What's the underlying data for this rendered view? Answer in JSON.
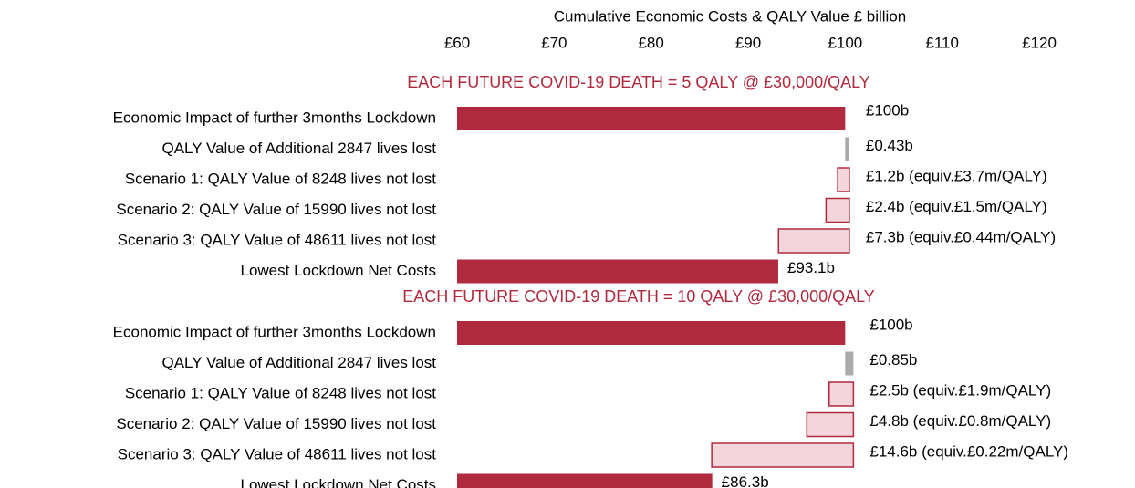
{
  "chart_data": {
    "type": "waterfall",
    "xlabel": "Cumulative Economic Costs & QALY Value £ billion",
    "xlim": [
      60,
      120
    ],
    "xticks": [
      {
        "value": 60,
        "label": "£60"
      },
      {
        "value": 70,
        "label": "£70"
      },
      {
        "value": 80,
        "label": "£80"
      },
      {
        "value": 90,
        "label": "£90"
      },
      {
        "value": 100,
        "label": "£100"
      },
      {
        "value": 110,
        "label": "£110"
      },
      {
        "value": 120,
        "label": "£120"
      }
    ],
    "total_color": "#b02a3e",
    "increase_color": "#aaaaaa",
    "decrease_color": "#f2d6db",
    "sections": [
      {
        "title": "EACH FUTURE COVID-19 DEATH = 5 QALY @ £30,000/QALY",
        "categories": [
          "Economic Impact of further 3months Lockdown",
          "QALY Value of Additional 2847 lives lost",
          "Scenario 1: QALY Value of 8248 lives not lost",
          "Scenario 2: QALY Value of 15990 lives not lost",
          "Scenario 3: QALY Value of 48611 lives not lost",
          "Lowest Lockdown Net Costs"
        ],
        "values": [
          100,
          0.43,
          1.2,
          2.4,
          7.3,
          93.1
        ],
        "value_labels": [
          "£100b",
          "£0.43b",
          "£1.2b (equiv.£3.7m/QALY)",
          "£2.4b (equiv.£1.5m/QALY)",
          "£7.3b (equiv.£0.44m/QALY)",
          "£93.1b"
        ]
      },
      {
        "title": "EACH FUTURE COVID-19 DEATH = 10 QALY @ £30,000/QALY",
        "categories": [
          "Economic Impact of further 3months Lockdown",
          "QALY Value of Additional 2847 lives lost",
          "Scenario 1: QALY Value of 8248 lives not lost",
          "Scenario 2: QALY Value of 15990 lives not lost",
          "Scenario 3: QALY Value of 48611 lives not lost",
          "Lowest Lockdown Net Costs"
        ],
        "values": [
          100,
          0.85,
          2.5,
          4.8,
          14.6,
          86.3
        ],
        "value_labels": [
          "£100b",
          "£0.85b",
          "£2.5b (equiv.£1.9m/QALY)",
          "£4.8b (equiv.£0.8m/QALY)",
          "£14.6b (equiv.£0.22m/QALY)",
          "£86.3b"
        ]
      }
    ]
  }
}
